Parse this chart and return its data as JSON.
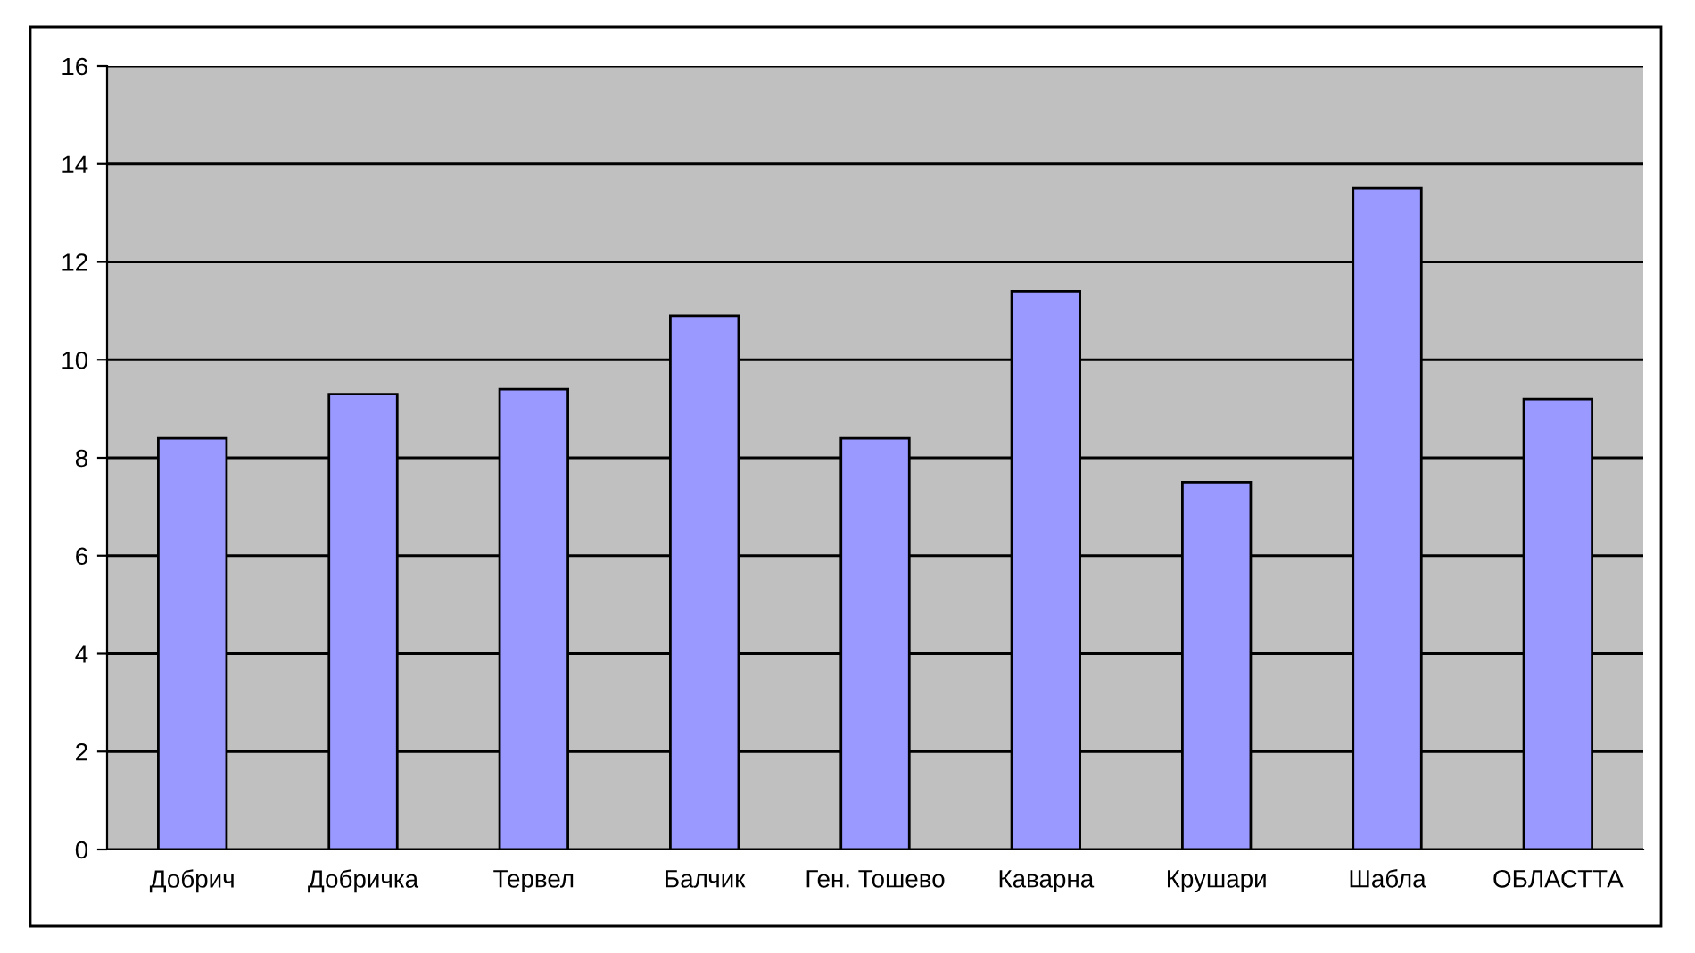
{
  "chart_data": {
    "type": "bar",
    "categories": [
      "Добрич",
      "Добричка",
      "Тервел",
      "Балчик",
      "Ген. Тошево",
      "Каварна",
      "Крушари",
      "Шабла",
      "ОБЛАСТТА"
    ],
    "values": [
      8.4,
      9.3,
      9.4,
      10.9,
      8.4,
      11.4,
      7.5,
      13.5,
      9.2
    ],
    "color": "#9999ff",
    "ylim": [
      0,
      16
    ],
    "yticks": [
      0,
      2,
      4,
      6,
      8,
      10,
      12,
      14,
      16
    ],
    "grid": "y"
  }
}
